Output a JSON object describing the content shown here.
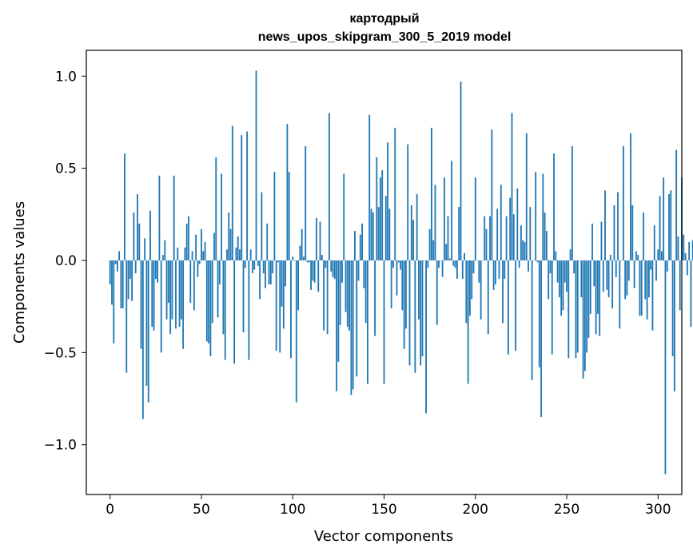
{
  "chart_data": {
    "type": "bar",
    "title": "картодрый",
    "subtitle": "news_upos_skipgram_300_5_2019 model",
    "xlabel": "Vector components",
    "ylabel": "Components values",
    "xlim": [
      -13,
      313
    ],
    "ylim": [
      -1.27,
      1.14
    ],
    "xticks": [
      0,
      50,
      100,
      150,
      200,
      250,
      300
    ],
    "yticks": [
      -1.0,
      -0.5,
      0.0,
      0.5,
      1.0
    ],
    "xtick_labels": [
      "0",
      "50",
      "100",
      "150",
      "200",
      "250",
      "300"
    ],
    "ytick_labels": [
      "−1.0",
      "−0.5",
      "0.0",
      "0.5",
      "1.0"
    ],
    "bar_color": "#1f77b4",
    "grid": false,
    "values": [
      -0.13,
      -0.24,
      -0.45,
      -0.02,
      -0.06,
      0.05,
      -0.26,
      -0.26,
      0.58,
      -0.61,
      -0.21,
      -0.1,
      -0.22,
      0.26,
      -0.07,
      0.36,
      0.2,
      -0.48,
      -0.86,
      0.12,
      -0.68,
      -0.77,
      0.27,
      -0.36,
      -0.38,
      -0.1,
      -0.12,
      0.46,
      -0.5,
      0.03,
      0.11,
      -0.32,
      -0.23,
      -0.4,
      -0.32,
      0.46,
      -0.37,
      0.07,
      -0.36,
      -0.32,
      -0.48,
      0.07,
      0.2,
      0.24,
      -0.23,
      0.05,
      -0.27,
      0.14,
      -0.09,
      -0.02,
      0.17,
      0.05,
      0.1,
      -0.44,
      -0.45,
      -0.52,
      -0.34,
      0.15,
      0.56,
      -0.31,
      -0.13,
      0.47,
      -0.4,
      -0.54,
      0.06,
      0.26,
      0.17,
      0.73,
      -0.56,
      0.07,
      0.13,
      0.06,
      0.68,
      -0.39,
      -0.04,
      0.7,
      -0.54,
      0.06,
      -0.07,
      -0.05,
      1.03,
      -0.03,
      -0.21,
      0.37,
      -0.07,
      -0.15,
      0.2,
      -0.13,
      -0.13,
      -0.07,
      0.48,
      -0.49,
      -0.01,
      -0.5,
      -0.25,
      -0.37,
      -0.14,
      0.74,
      0.48,
      -0.53,
      0.02,
      0.0,
      -0.77,
      -0.27,
      0.08,
      0.17,
      0.02,
      0.62,
      -0.01,
      -0.01,
      -0.16,
      -0.11,
      -0.12,
      0.23,
      -0.17,
      0.21,
      0.03,
      -0.38,
      -0.04,
      -0.4,
      0.8,
      -0.06,
      -0.09,
      -0.1,
      -0.71,
      -0.55,
      -0.35,
      -0.12,
      0.47,
      -0.28,
      -0.36,
      -0.38,
      -0.73,
      -0.7,
      0.16,
      -0.63,
      -0.11,
      0.14,
      0.2,
      -0.15,
      -0.34,
      -0.67,
      0.79,
      0.28,
      0.26,
      -0.41,
      0.56,
      0.29,
      0.45,
      0.49,
      -0.67,
      0.35,
      0.64,
      0.28,
      -0.26,
      -0.04,
      0.72,
      -0.19,
      -0.01,
      -0.05,
      -0.27,
      -0.48,
      -0.37,
      0.63,
      -0.57,
      0.3,
      0.22,
      -0.61,
      0.36,
      -0.32,
      -0.57,
      -0.52,
      0.0,
      -0.83,
      -0.04,
      0.17,
      0.72,
      0.11,
      0.41,
      -0.35,
      -0.04,
      0.0,
      -0.09,
      0.45,
      0.09,
      0.24,
      0.01,
      0.54,
      -0.03,
      -0.04,
      -0.1,
      0.29,
      0.97,
      -0.1,
      0.04,
      -0.34,
      -0.67,
      -0.3,
      -0.21,
      -0.07,
      0.45,
      0.0,
      -0.12,
      -0.32,
      0.0,
      0.24,
      0.17,
      -0.4,
      0.24,
      0.71,
      -0.16,
      -0.13,
      0.28,
      -0.1,
      0.41,
      -0.34,
      -0.1,
      0.24,
      -0.51,
      0.34,
      0.8,
      0.25,
      -0.49,
      0.39,
      -0.04,
      0.19,
      0.11,
      0.1,
      0.69,
      -0.06,
      0.29,
      -0.65,
      0.0,
      0.48,
      -0.01,
      -0.58,
      -0.85,
      0.47,
      0.26,
      0.16,
      -0.21,
      -0.07,
      -0.51,
      0.58,
      0.05,
      -0.12,
      -0.2,
      -0.3,
      -0.27,
      -0.12,
      -0.17,
      -0.53,
      0.06,
      0.62,
      -0.07,
      -0.53,
      -0.5,
      0.0,
      -0.2,
      -0.64,
      -0.6,
      -0.5,
      -0.42,
      -0.29,
      0.2,
      -0.14,
      -0.4,
      -0.29,
      -0.41,
      0.21,
      -0.17,
      0.38,
      -0.16,
      -0.2,
      0.03,
      -0.26,
      0.3,
      -0.09,
      0.37,
      -0.37,
      0.0,
      0.62,
      -0.21,
      -0.19,
      -0.11,
      0.69,
      0.3,
      -0.15,
      0.05,
      0.03,
      -0.3,
      -0.3,
      0.26,
      -0.21,
      -0.32,
      -0.2,
      -0.05,
      -0.38,
      0.19,
      -0.11,
      0.06,
      0.35,
      0.05,
      0.45,
      -1.16,
      -0.06,
      0.36,
      0.38,
      -0.52,
      -0.71,
      0.6,
      0.13,
      -0.27,
      0.45,
      0.14,
      0.04,
      -0.08,
      0.1,
      -0.36,
      0.11,
      0.14,
      0.32
    ]
  }
}
